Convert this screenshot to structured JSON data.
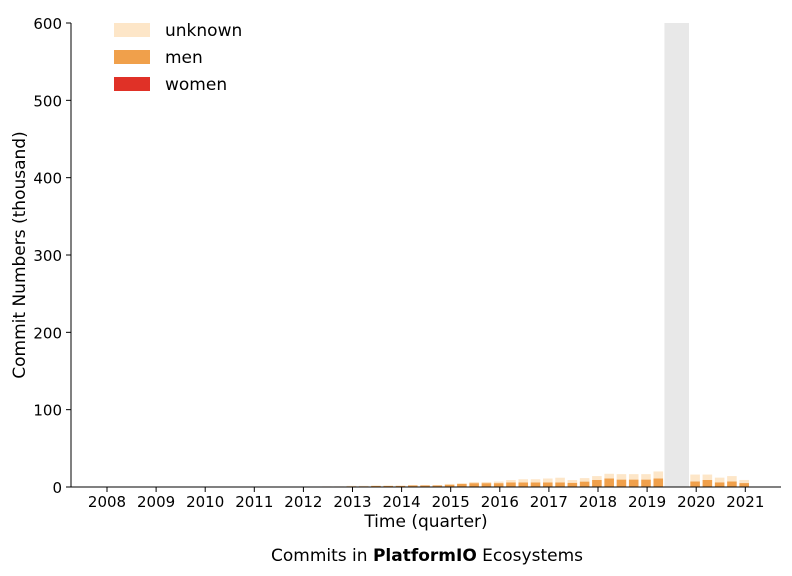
{
  "chart_data": {
    "type": "bar",
    "stacked": true,
    "xlabel": "Time (quarter)",
    "ylabel": "Commit Numbers (thousand)",
    "ylim": [
      0,
      600
    ],
    "yticks": [
      "0",
      "100",
      "200",
      "300",
      "400",
      "500",
      "600"
    ],
    "xticks": [
      "2008",
      "2009",
      "2010",
      "2011",
      "2012",
      "2013",
      "2014",
      "2015",
      "2016",
      "2017",
      "2018",
      "2019",
      "2020",
      "2021"
    ],
    "legend": {
      "placement": "top-left",
      "entries": [
        "unknown",
        "men",
        "women"
      ]
    },
    "colors": {
      "unknown": "#fde6c8",
      "men": "#f0a04b",
      "women": "#e03127",
      "gap": "#e8e8e8",
      "axis": "#000000"
    },
    "highlight_gap_quarters": [
      "2019Q3",
      "2019Q4"
    ],
    "quarters": [
      "2012Q2",
      "2012Q3",
      "2012Q4",
      "2013Q1",
      "2013Q2",
      "2013Q3",
      "2013Q4",
      "2014Q1",
      "2014Q2",
      "2014Q3",
      "2014Q4",
      "2015Q1",
      "2015Q2",
      "2015Q3",
      "2015Q4",
      "2016Q1",
      "2016Q2",
      "2016Q3",
      "2016Q4",
      "2017Q1",
      "2017Q2",
      "2017Q3",
      "2017Q4",
      "2018Q1",
      "2018Q2",
      "2018Q3",
      "2018Q4",
      "2019Q1",
      "2019Q2",
      "2020Q1",
      "2020Q2",
      "2020Q3",
      "2020Q4",
      "2021Q1"
    ],
    "series": [
      {
        "name": "women",
        "values": [
          0,
          0,
          0,
          0,
          0,
          0,
          0,
          0,
          0,
          0,
          0,
          0,
          0,
          0,
          0,
          0,
          0,
          0,
          0,
          0,
          0,
          0,
          0,
          0.1,
          0.1,
          0.1,
          0.1,
          0.1,
          0.1,
          0.1,
          0.1,
          0.1,
          0.1,
          0.1
        ]
      },
      {
        "name": "men",
        "values": [
          0.3,
          0.5,
          0.5,
          1,
          1,
          1.3,
          1.3,
          1.5,
          2,
          2,
          2,
          3,
          4,
          5,
          5,
          5,
          6,
          6,
          6,
          6,
          6,
          5.5,
          7,
          9,
          11,
          9.5,
          9.5,
          9.5,
          11,
          7,
          9,
          6,
          7,
          5
        ]
      },
      {
        "name": "unknown",
        "values": [
          0.2,
          0.3,
          0.3,
          0.5,
          0.5,
          0.7,
          0.7,
          0.5,
          0.5,
          0.5,
          0.5,
          1,
          1,
          1.5,
          1.5,
          2,
          3,
          4,
          4,
          5,
          6,
          3.5,
          4.5,
          5,
          6,
          7,
          7,
          7,
          9,
          9,
          7,
          6,
          7,
          4
        ]
      }
    ],
    "caption": {
      "prefix": "Commits in ",
      "bold": "PlatformIO",
      "suffix": " Ecosystems"
    }
  }
}
